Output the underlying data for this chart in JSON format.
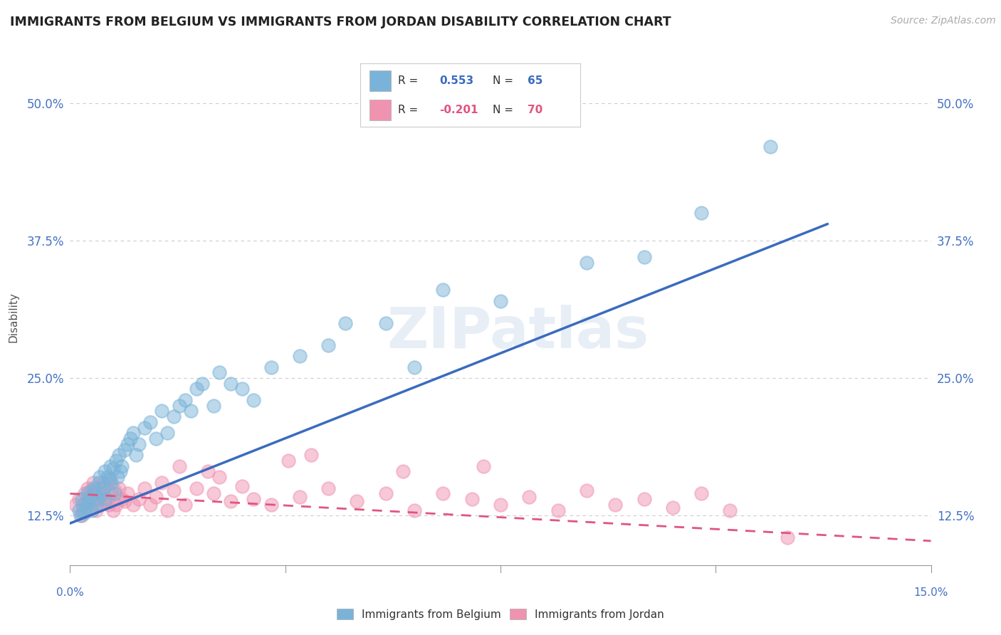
{
  "title": "IMMIGRANTS FROM BELGIUM VS IMMIGRANTS FROM JORDAN DISABILITY CORRELATION CHART",
  "source": "Source: ZipAtlas.com",
  "ylabel": "Disability",
  "xlim": [
    0.0,
    15.0
  ],
  "ylim": [
    8.0,
    53.0
  ],
  "yticks": [
    12.5,
    25.0,
    37.5,
    50.0
  ],
  "ytick_labels": [
    "12.5%",
    "25.0%",
    "37.5%",
    "50.0%"
  ],
  "belgium_color": "#7ab3d9",
  "jordan_color": "#f093b0",
  "belgium_line_color": "#3a6bbf",
  "jordan_line_color": "#e05580",
  "tick_color": "#4472c4",
  "watermark_text": "ZIPatlas",
  "background_color": "#ffffff",
  "belgium_scatter_x": [
    0.15,
    0.18,
    0.2,
    0.22,
    0.25,
    0.28,
    0.3,
    0.32,
    0.35,
    0.38,
    0.4,
    0.42,
    0.45,
    0.48,
    0.5,
    0.52,
    0.55,
    0.58,
    0.6,
    0.62,
    0.65,
    0.68,
    0.7,
    0.72,
    0.75,
    0.78,
    0.8,
    0.82,
    0.85,
    0.88,
    0.9,
    0.95,
    1.0,
    1.05,
    1.1,
    1.15,
    1.2,
    1.3,
    1.4,
    1.5,
    1.6,
    1.7,
    1.8,
    1.9,
    2.0,
    2.1,
    2.2,
    2.5,
    2.8,
    3.2,
    3.5,
    4.0,
    4.5,
    5.5,
    6.0,
    7.5,
    9.0,
    10.0,
    11.0,
    12.2,
    3.0,
    2.3,
    2.6,
    4.8,
    6.5
  ],
  "belgium_scatter_y": [
    13.0,
    12.5,
    14.0,
    13.5,
    12.8,
    13.2,
    14.5,
    13.8,
    14.2,
    13.0,
    15.0,
    14.8,
    13.5,
    14.0,
    15.5,
    16.0,
    14.5,
    15.0,
    16.5,
    14.0,
    16.0,
    15.8,
    17.0,
    15.5,
    16.8,
    14.5,
    17.5,
    16.0,
    18.0,
    16.5,
    17.0,
    18.5,
    19.0,
    19.5,
    20.0,
    18.0,
    19.0,
    20.5,
    21.0,
    19.5,
    22.0,
    20.0,
    21.5,
    22.5,
    23.0,
    22.0,
    24.0,
    22.5,
    24.5,
    23.0,
    26.0,
    27.0,
    28.0,
    30.0,
    26.0,
    32.0,
    35.5,
    36.0,
    40.0,
    46.0,
    24.0,
    24.5,
    25.5,
    30.0,
    33.0
  ],
  "jordan_scatter_x": [
    0.1,
    0.15,
    0.2,
    0.22,
    0.25,
    0.28,
    0.3,
    0.32,
    0.35,
    0.38,
    0.4,
    0.42,
    0.45,
    0.48,
    0.5,
    0.52,
    0.55,
    0.58,
    0.6,
    0.62,
    0.65,
    0.68,
    0.7,
    0.72,
    0.75,
    0.78,
    0.8,
    0.85,
    0.9,
    0.95,
    1.0,
    1.1,
    1.2,
    1.3,
    1.4,
    1.5,
    1.6,
    1.7,
    1.8,
    2.0,
    2.2,
    2.5,
    2.8,
    3.0,
    3.2,
    3.5,
    4.0,
    4.5,
    5.0,
    5.5,
    6.0,
    6.5,
    7.0,
    7.5,
    8.0,
    8.5,
    9.0,
    9.5,
    10.0,
    10.5,
    11.0,
    11.5,
    3.8,
    4.2,
    2.4,
    1.9,
    2.6,
    5.8,
    7.2,
    12.5
  ],
  "jordan_scatter_y": [
    13.5,
    14.0,
    12.5,
    13.0,
    14.5,
    13.8,
    15.0,
    14.2,
    14.8,
    13.5,
    15.5,
    14.5,
    13.0,
    14.0,
    15.0,
    13.5,
    14.5,
    15.5,
    13.8,
    15.2,
    14.0,
    13.5,
    15.8,
    14.5,
    13.0,
    14.8,
    13.5,
    15.0,
    14.0,
    13.8,
    14.5,
    13.5,
    14.0,
    15.0,
    13.5,
    14.2,
    15.5,
    13.0,
    14.8,
    13.5,
    15.0,
    14.5,
    13.8,
    15.2,
    14.0,
    13.5,
    14.2,
    15.0,
    13.8,
    14.5,
    13.0,
    14.5,
    14.0,
    13.5,
    14.2,
    13.0,
    14.8,
    13.5,
    14.0,
    13.2,
    14.5,
    13.0,
    17.5,
    18.0,
    16.5,
    17.0,
    16.0,
    16.5,
    17.0,
    10.5
  ],
  "belgium_trend_x": [
    0.0,
    13.2
  ],
  "belgium_trend_y": [
    11.8,
    39.0
  ],
  "jordan_trend_x": [
    0.0,
    15.0
  ],
  "jordan_trend_y": [
    14.5,
    10.2
  ],
  "legend_r1": "0.553",
  "legend_n1": "65",
  "legend_r2": "-0.201",
  "legend_n2": "70"
}
